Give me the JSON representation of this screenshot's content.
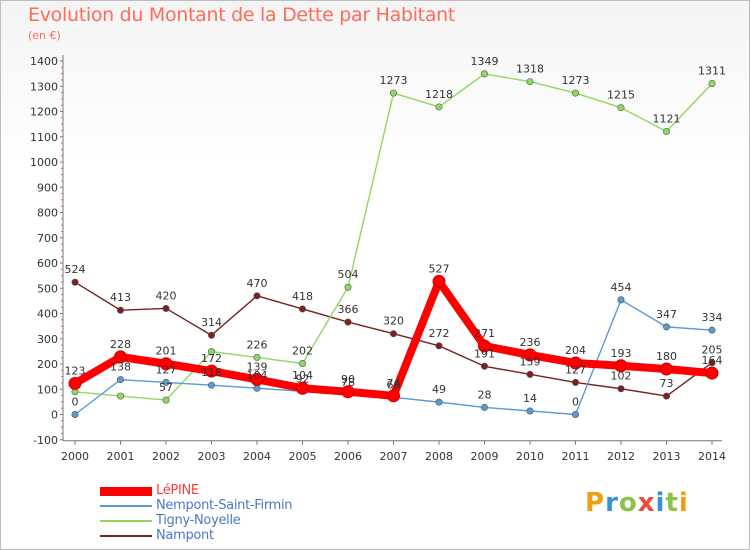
{
  "title": "Evolution du Montant de la Dette par Habitant",
  "unit": "(en €)",
  "logo": {
    "text": "Proxiti",
    "letters": [
      "P",
      "r",
      "o",
      "x",
      "i",
      "t",
      "i"
    ],
    "colors": [
      "#f39c12",
      "#3b8fd4",
      "#8bc34a",
      "#e74c3c",
      "#3b8fd4",
      "#8bc34a",
      "#f39c12"
    ]
  },
  "chart_data": {
    "type": "line",
    "title": "Evolution du Montant de la Dette par Habitant",
    "ylabel": "(en €)",
    "xlabel": "",
    "ylim": [
      -100,
      1400
    ],
    "y_ticks": [
      -100,
      0,
      100,
      200,
      300,
      400,
      500,
      600,
      700,
      800,
      900,
      1000,
      1100,
      1200,
      1300,
      1400
    ],
    "categories": [
      "2000",
      "2001",
      "2002",
      "2003",
      "2004",
      "2005",
      "2006",
      "2007",
      "2008",
      "2009",
      "2010",
      "2011",
      "2012",
      "2013",
      "2014"
    ],
    "grid": false,
    "legend_position": "bottom-left",
    "series": [
      {
        "name": "Nampont",
        "color": "#7a2020",
        "values": [
          524,
          413,
          420,
          314,
          470,
          418,
          366,
          320,
          272,
          191,
          159,
          127,
          102,
          73,
          205
        ],
        "labels": [
          "524",
          "413",
          "420",
          "314",
          "470",
          "418",
          "366",
          "320",
          "272",
          "191",
          "159",
          "127",
          "102",
          "73",
          "205"
        ]
      },
      {
        "name": "Tigny-Noyelle",
        "color": "#90d860",
        "values": [
          90,
          73,
          57,
          249,
          226,
          202,
          504,
          1273,
          1218,
          1349,
          1318,
          1273,
          1215,
          1121,
          1311
        ],
        "labels": [
          "",
          "",
          "57",
          "",
          "226",
          "202",
          "504",
          "1273",
          "1218",
          "1349",
          "1318",
          "1273",
          "1215",
          "1121",
          "1311"
        ]
      },
      {
        "name": "Nempont-Saint-Firmin",
        "color": "#5a9ad5",
        "values": [
          0,
          138,
          127,
          116,
          104,
          92,
          78,
          68,
          49,
          28,
          14,
          0,
          454,
          347,
          334
        ],
        "labels": [
          "0",
          "138",
          "127",
          "116",
          "104",
          "92",
          "78",
          "68",
          "49",
          "28",
          "14",
          "0",
          "454",
          "347",
          "334"
        ]
      },
      {
        "name": "LéPINE",
        "color": "#ff0000",
        "values": [
          123,
          228,
          201,
          172,
          139,
          104,
          90,
          74,
          527,
          271,
          236,
          204,
          193,
          180,
          164
        ],
        "labels": [
          "123",
          "228",
          "201",
          "172",
          "139",
          "104",
          "90",
          "74",
          "527",
          "271",
          "236",
          "204",
          "193",
          "180",
          "164"
        ]
      }
    ],
    "legend": [
      {
        "name": "LéPINE",
        "color": "#ff0000",
        "width": 9
      },
      {
        "name": "Nempont-Saint-Firmin",
        "color": "#5a9ad5",
        "width": 2
      },
      {
        "name": "Tigny-Noyelle",
        "color": "#90d860",
        "width": 2
      },
      {
        "name": "Nampont",
        "color": "#7a2020",
        "width": 2
      }
    ]
  }
}
